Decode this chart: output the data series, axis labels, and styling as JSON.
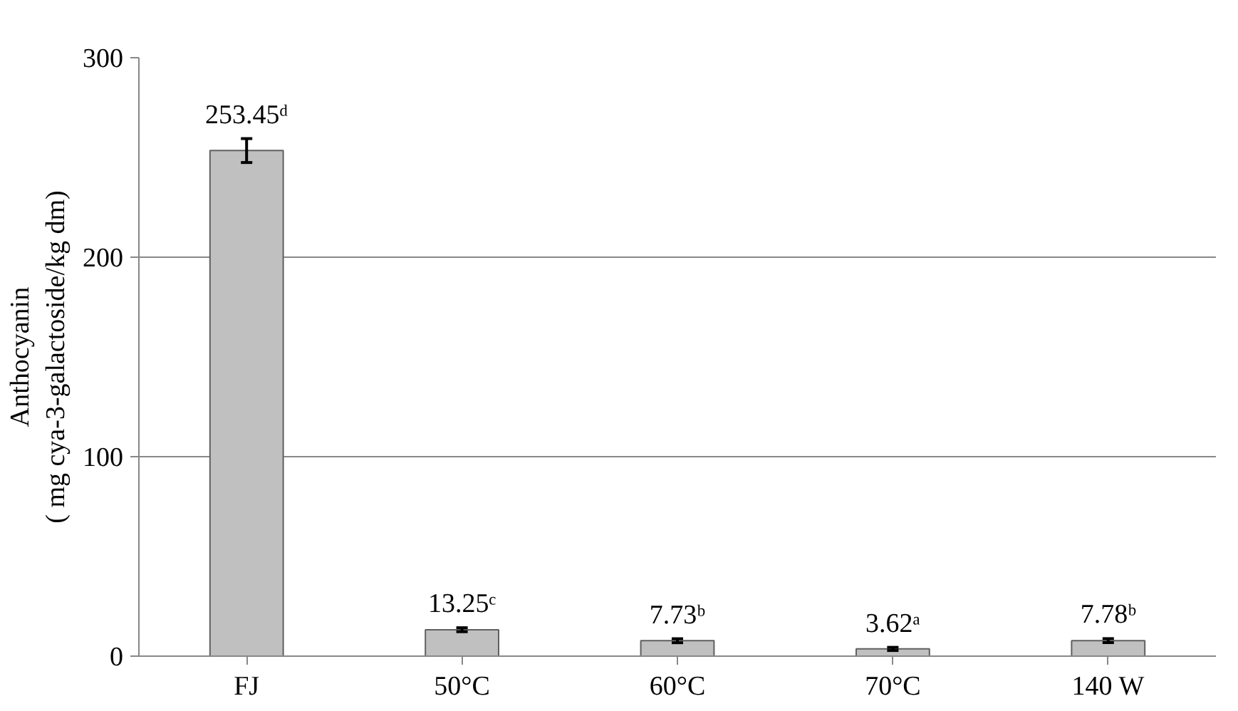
{
  "chart_data": {
    "type": "bar",
    "ylabel": "Anthocyanin\n( mg cya-3-galactoside/kg dm)",
    "categories": [
      "FJ",
      "50°C",
      "60°C",
      "70°C",
      "140 W"
    ],
    "values": [
      253.45,
      13.25,
      7.73,
      3.62,
      7.78
    ],
    "value_labels": [
      "253.45ᵈ",
      "13.25ᶜ",
      "7.73ᵇ",
      "3.62ᵃ",
      "7.78ᵇ"
    ],
    "errors": [
      6,
      1,
      1,
      0.8,
      1
    ],
    "color": "#c0c0c0",
    "ylim": [
      0,
      300
    ],
    "yticks": [
      0,
      100,
      200,
      300
    ],
    "grid": "y"
  }
}
